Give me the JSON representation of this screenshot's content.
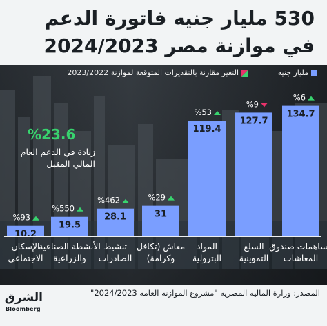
{
  "title": {
    "line1": "530 مليار جنيه فاتورة الدعم",
    "line2": "في موازنة مصر 2024/2023"
  },
  "legend": {
    "value_label": "مليار جنيه",
    "change_label": "التغير مقارنة بالتقديرات المتوقعة لموازنة 2023/2022"
  },
  "colors": {
    "bar": "#7a9eff",
    "up": "#38d36e",
    "down": "#e8326a"
  },
  "callout": {
    "pct": "%23.6",
    "text": "زيادة في الدعم العام المالي المقبل"
  },
  "source": "المصدر: وزارة المالية المصرية \"مشروع الموازنة العامة 2024/2023\"",
  "logo": {
    "arabic": "الشرق",
    "english": "Bloomberg"
  },
  "chart_data": {
    "type": "bar",
    "unit": "مليار جنيه",
    "categories": [
      "مساهمات صندوق المعاشات",
      "السلع التموينية",
      "المواد البترولية",
      "معاش (تكافل وكرامة)",
      "تنشيط الصادرات",
      "الأنشطة الصناعية والزراعية",
      "الإسكان الاجتماعي"
    ],
    "values": [
      134.7,
      127.7,
      119.4,
      31,
      28.1,
      19.5,
      10.2
    ],
    "value_labels": [
      "134.7",
      "127.7",
      "119.4",
      "31",
      "28.1",
      "19.5",
      "10.2"
    ],
    "change_pct_labels": [
      "%6",
      "%9",
      "%53",
      "%29",
      "%462",
      "%550",
      "%93"
    ],
    "change_direction": [
      "up",
      "down",
      "up",
      "up",
      "up",
      "up",
      "up"
    ],
    "ylim": [
      0,
      138
    ]
  }
}
